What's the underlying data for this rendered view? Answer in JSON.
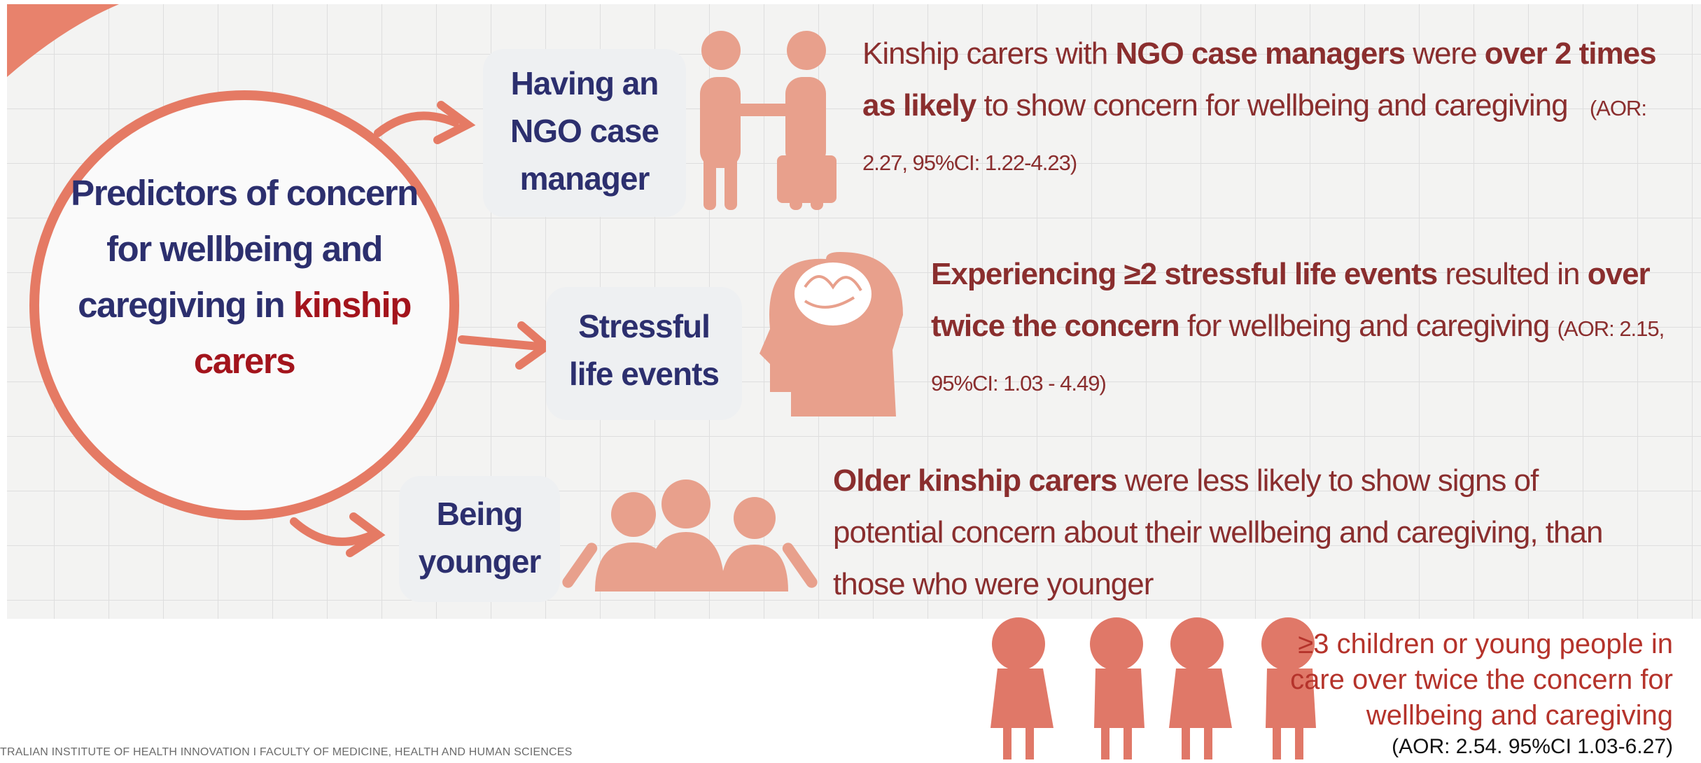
{
  "center": {
    "segments": [
      {
        "text": "Predictors of concern for wellbeing and caregiving in",
        "accent": false
      },
      {
        "text": "kinship carers",
        "accent": true
      }
    ]
  },
  "predictors": [
    {
      "label": "Having an NGO case manager",
      "segments": [
        {
          "text": "Kinship carers with",
          "bold": false
        },
        {
          "text": "NGO case managers",
          "bold": true
        },
        {
          "text": "were",
          "bold": false
        },
        {
          "text": "over 2 times as likely",
          "bold": true
        },
        {
          "text": "to show concern for wellbeing and caregiving",
          "bold": false
        }
      ],
      "stat": "(AOR: 2.27, 95%CI: 1.22-4.23)"
    },
    {
      "label": "Stressful life events",
      "segments": [
        {
          "text": "Experiencing ≥2 stressful life events",
          "bold": true
        },
        {
          "text": "resulted in",
          "bold": false
        },
        {
          "text": "over twice the concern",
          "bold": true
        },
        {
          "text": "for wellbeing and caregiving",
          "bold": false
        }
      ],
      "stat": "(AOR: 2.15, 95%CI: 1.03 - 4.49)"
    },
    {
      "label": "Being younger",
      "segments": [
        {
          "text": "Older kinship carers",
          "bold": true
        },
        {
          "text": "were less likely to show signs of potential concern about their wellbeing and caregiving, than those who were younger",
          "bold": false
        }
      ]
    }
  ],
  "extra": {
    "text": "≥3 children or young people in care over twice the concern for wellbeing and caregiving",
    "stat": "(AOR: 2.54. 95%CI 1.03-6.27)"
  },
  "footer": "TRALIAN INSTITUTE OF HEALTH INNOVATION I FACULTY OF MEDICINE, HEALTH AND HUMAN SCIENCES"
}
